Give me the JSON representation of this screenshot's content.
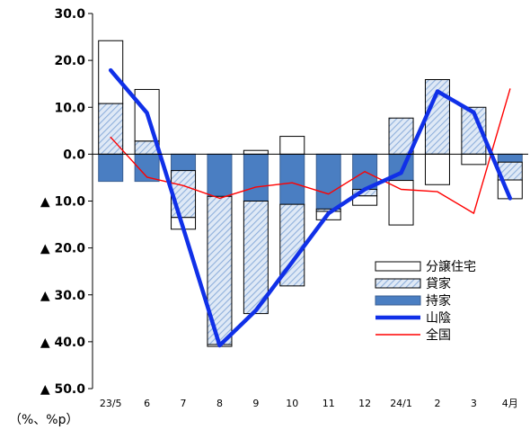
{
  "chart_data": {
    "type": "bar",
    "stacked": true,
    "categories": [
      "23/5",
      "6",
      "7",
      "8",
      "9",
      "10",
      "11",
      "12",
      "24/1",
      "2",
      "3",
      "4月"
    ],
    "y_tick_labels": [
      "30.0",
      "20.0",
      "10.0",
      "0.0",
      "▲ 10.0",
      "▲ 20.0",
      "▲ 30.0",
      "▲ 40.0",
      "▲ 50.0"
    ],
    "y_tick_values": [
      30,
      20,
      10,
      0,
      -10,
      -20,
      -30,
      -40,
      -50
    ],
    "ylim": [
      -50,
      30
    ],
    "unit_label": "（%、%p）",
    "legend_position": "lower-right",
    "series": [
      {
        "name": "分譲住宅",
        "kind": "bar",
        "style": "white",
        "values": [
          13.4,
          11.0,
          -2.5,
          -0.4,
          0.8,
          3.8,
          -1.8,
          -2.0,
          -9.5,
          -6.5,
          -2.2,
          -4.0
        ]
      },
      {
        "name": "貸家",
        "kind": "bar",
        "style": "hatch",
        "values": [
          10.8,
          2.8,
          -10.0,
          -31.6,
          -24.0,
          -17.4,
          -0.5,
          -1.4,
          7.7,
          15.9,
          10.0,
          -3.8
        ]
      },
      {
        "name": "持家",
        "kind": "bar",
        "style": "blue",
        "values": [
          -5.8,
          -5.8,
          -3.5,
          -9.0,
          -10.0,
          -10.7,
          -11.7,
          -7.5,
          -5.6,
          0.0,
          0.0,
          -1.7
        ]
      },
      {
        "name": "山陰",
        "kind": "line",
        "color": "#1030e8",
        "values": [
          17.9,
          8.8,
          -15.8,
          -40.8,
          -33.3,
          -23.0,
          -12.6,
          -7.5,
          -4.0,
          13.4,
          8.9,
          -9.4
        ]
      },
      {
        "name": "全国",
        "kind": "line",
        "color": "#ff0000",
        "values": [
          3.6,
          -4.9,
          -6.7,
          -9.4,
          -7.0,
          -6.1,
          -8.5,
          -3.7,
          -7.5,
          -8.0,
          -12.6,
          13.9
        ]
      }
    ]
  }
}
